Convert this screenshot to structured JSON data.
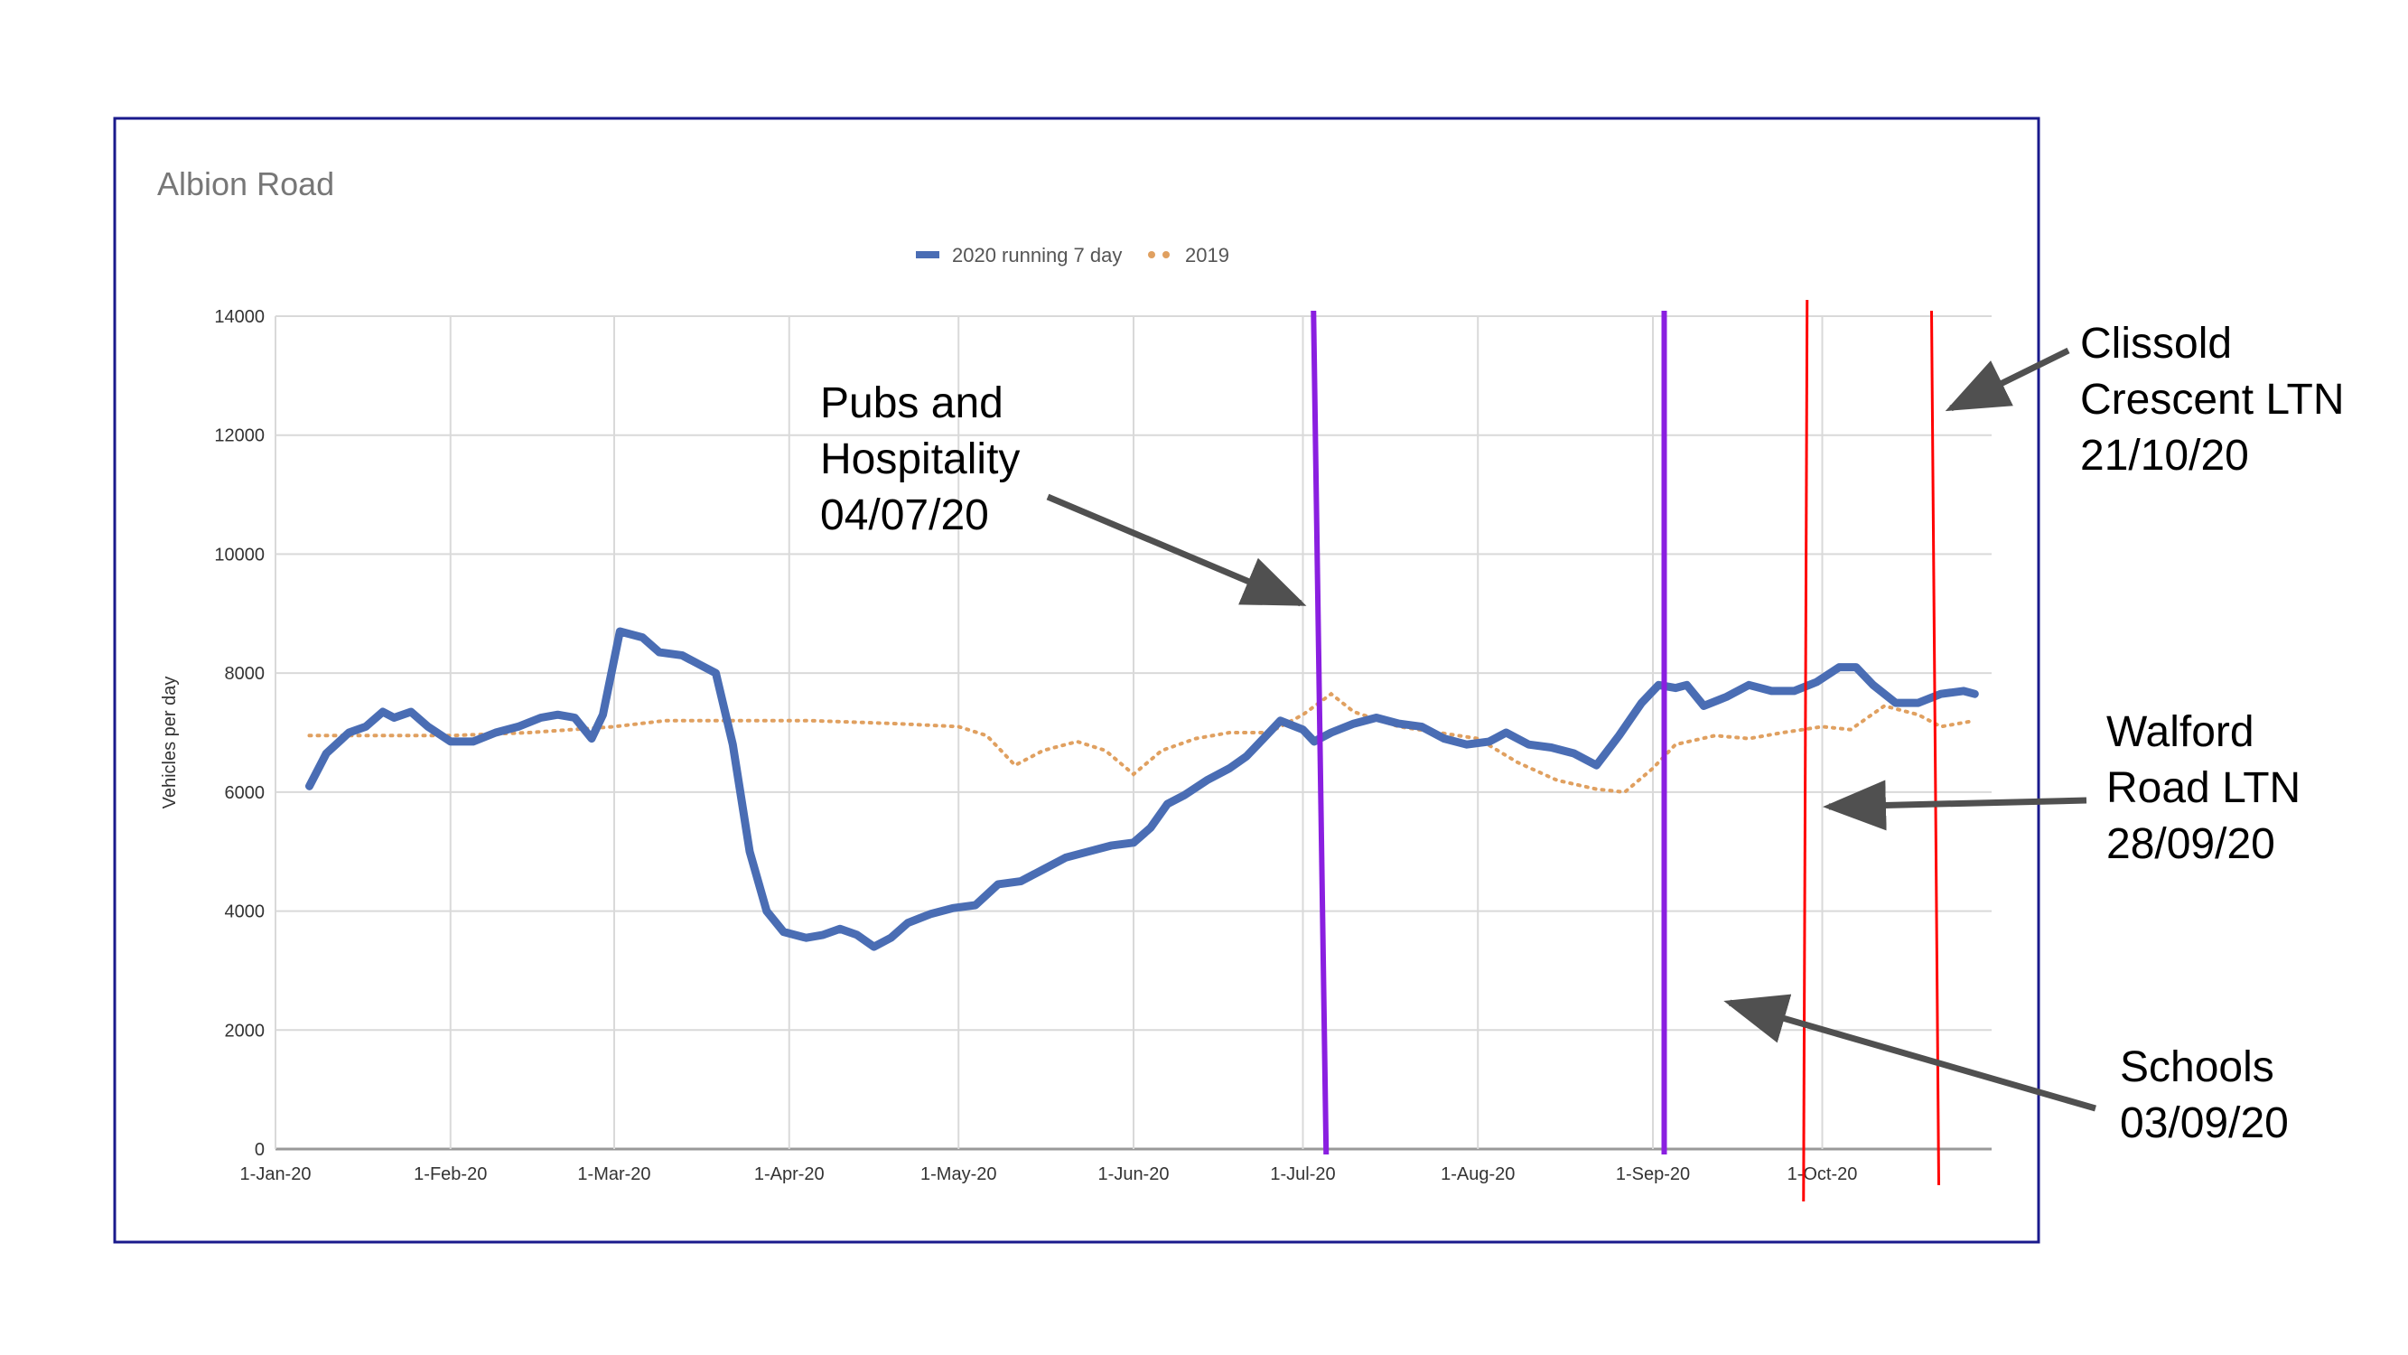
{
  "colors": {
    "series_2020": "#4a6db4",
    "series_2019": "#e0a060",
    "purple_marker": "#8a1fe0",
    "red_marker": "#ff0000",
    "frame": "#1a1a8c",
    "grid": "#d9d9d9",
    "arrow": "#505050"
  },
  "chart_data": {
    "type": "line",
    "title": "Albion Road",
    "ylabel": "Vehicles per day",
    "xlabel": "",
    "ylim": [
      0,
      14000
    ],
    "yticks": [
      "0",
      "2000",
      "4000",
      "6000",
      "8000",
      "10000",
      "12000",
      "14000"
    ],
    "xticks": [
      "1-Jan-20",
      "1-Feb-20",
      "1-Mar-20",
      "1-Apr-20",
      "1-May-20",
      "1-Jun-20",
      "1-Jul-20",
      "1-Aug-20",
      "1-Sep-20",
      "1-Oct-20"
    ],
    "x_range": [
      "2020-01-01",
      "2020-10-31"
    ],
    "grid": true,
    "legend_position": "top-center",
    "series": [
      {
        "name": "2020 running 7 day",
        "style": "solid",
        "points": [
          [
            "2020-01-07",
            6100
          ],
          [
            "2020-01-10",
            6650
          ],
          [
            "2020-01-14",
            7000
          ],
          [
            "2020-01-17",
            7100
          ],
          [
            "2020-01-20",
            7350
          ],
          [
            "2020-01-22",
            7250
          ],
          [
            "2020-01-25",
            7350
          ],
          [
            "2020-01-28",
            7100
          ],
          [
            "2020-02-01",
            6850
          ],
          [
            "2020-02-05",
            6850
          ],
          [
            "2020-02-09",
            7000
          ],
          [
            "2020-02-13",
            7100
          ],
          [
            "2020-02-17",
            7250
          ],
          [
            "2020-02-20",
            7300
          ],
          [
            "2020-02-23",
            7250
          ],
          [
            "2020-02-26",
            6900
          ],
          [
            "2020-02-28",
            7300
          ],
          [
            "2020-03-02",
            8700
          ],
          [
            "2020-03-06",
            8600
          ],
          [
            "2020-03-09",
            8350
          ],
          [
            "2020-03-13",
            8300
          ],
          [
            "2020-03-16",
            8150
          ],
          [
            "2020-03-19",
            8000
          ],
          [
            "2020-03-22",
            6800
          ],
          [
            "2020-03-25",
            5000
          ],
          [
            "2020-03-28",
            4000
          ],
          [
            "2020-03-31",
            3650
          ],
          [
            "2020-04-04",
            3550
          ],
          [
            "2020-04-07",
            3600
          ],
          [
            "2020-04-10",
            3700
          ],
          [
            "2020-04-13",
            3600
          ],
          [
            "2020-04-16",
            3400
          ],
          [
            "2020-04-19",
            3550
          ],
          [
            "2020-04-22",
            3800
          ],
          [
            "2020-04-26",
            3950
          ],
          [
            "2020-04-30",
            4050
          ],
          [
            "2020-05-04",
            4100
          ],
          [
            "2020-05-08",
            4450
          ],
          [
            "2020-05-12",
            4500
          ],
          [
            "2020-05-16",
            4700
          ],
          [
            "2020-05-20",
            4900
          ],
          [
            "2020-05-24",
            5000
          ],
          [
            "2020-05-28",
            5100
          ],
          [
            "2020-06-01",
            5150
          ],
          [
            "2020-06-04",
            5400
          ],
          [
            "2020-06-07",
            5800
          ],
          [
            "2020-06-10",
            5950
          ],
          [
            "2020-06-14",
            6200
          ],
          [
            "2020-06-18",
            6400
          ],
          [
            "2020-06-21",
            6600
          ],
          [
            "2020-06-24",
            6900
          ],
          [
            "2020-06-27",
            7200
          ],
          [
            "2020-07-01",
            7050
          ],
          [
            "2020-07-03",
            6850
          ],
          [
            "2020-07-06",
            7000
          ],
          [
            "2020-07-10",
            7150
          ],
          [
            "2020-07-14",
            7250
          ],
          [
            "2020-07-18",
            7150
          ],
          [
            "2020-07-22",
            7100
          ],
          [
            "2020-07-26",
            6900
          ],
          [
            "2020-07-30",
            6800
          ],
          [
            "2020-08-03",
            6850
          ],
          [
            "2020-08-06",
            7000
          ],
          [
            "2020-08-10",
            6800
          ],
          [
            "2020-08-14",
            6750
          ],
          [
            "2020-08-18",
            6650
          ],
          [
            "2020-08-22",
            6450
          ],
          [
            "2020-08-26",
            6950
          ],
          [
            "2020-08-30",
            7500
          ],
          [
            "2020-09-02",
            7800
          ],
          [
            "2020-09-05",
            7750
          ],
          [
            "2020-09-07",
            7800
          ],
          [
            "2020-09-10",
            7450
          ],
          [
            "2020-09-14",
            7600
          ],
          [
            "2020-09-18",
            7800
          ],
          [
            "2020-09-22",
            7700
          ],
          [
            "2020-09-26",
            7700
          ],
          [
            "2020-09-30",
            7850
          ],
          [
            "2020-10-04",
            8100
          ],
          [
            "2020-10-07",
            8100
          ],
          [
            "2020-10-10",
            7800
          ],
          [
            "2020-10-14",
            7500
          ],
          [
            "2020-10-18",
            7500
          ],
          [
            "2020-10-22",
            7650
          ],
          [
            "2020-10-26",
            7700
          ],
          [
            "2020-10-28",
            7650
          ]
        ]
      },
      {
        "name": "2019",
        "style": "dotted",
        "points": [
          [
            "2020-01-07",
            6950
          ],
          [
            "2020-01-20",
            6950
          ],
          [
            "2020-02-01",
            6950
          ],
          [
            "2020-02-15",
            7000
          ],
          [
            "2020-03-01",
            7100
          ],
          [
            "2020-03-10",
            7200
          ],
          [
            "2020-03-20",
            7200
          ],
          [
            "2020-04-05",
            7200
          ],
          [
            "2020-04-20",
            7150
          ],
          [
            "2020-05-01",
            7100
          ],
          [
            "2020-05-06",
            6950
          ],
          [
            "2020-05-11",
            6450
          ],
          [
            "2020-05-16",
            6700
          ],
          [
            "2020-05-22",
            6850
          ],
          [
            "2020-05-27",
            6700
          ],
          [
            "2020-06-01",
            6300
          ],
          [
            "2020-06-06",
            6700
          ],
          [
            "2020-06-12",
            6900
          ],
          [
            "2020-06-18",
            7000
          ],
          [
            "2020-06-25",
            7000
          ],
          [
            "2020-07-01",
            7300
          ],
          [
            "2020-07-06",
            7650
          ],
          [
            "2020-07-10",
            7350
          ],
          [
            "2020-07-18",
            7100
          ],
          [
            "2020-07-25",
            7000
          ],
          [
            "2020-08-01",
            6900
          ],
          [
            "2020-08-08",
            6500
          ],
          [
            "2020-08-15",
            6200
          ],
          [
            "2020-08-22",
            6050
          ],
          [
            "2020-08-27",
            6000
          ],
          [
            "2020-09-01",
            6400
          ],
          [
            "2020-09-05",
            6800
          ],
          [
            "2020-09-12",
            6950
          ],
          [
            "2020-09-18",
            6900
          ],
          [
            "2020-09-24",
            7000
          ],
          [
            "2020-10-01",
            7100
          ],
          [
            "2020-10-06",
            7050
          ],
          [
            "2020-10-12",
            7450
          ],
          [
            "2020-10-18",
            7300
          ],
          [
            "2020-10-22",
            7100
          ],
          [
            "2020-10-28",
            7200
          ]
        ]
      }
    ]
  },
  "annotations": [
    {
      "id": "pubs",
      "lines": [
        "Pubs and",
        "Hospitality",
        "04/07/20"
      ],
      "date": "2020-07-04",
      "marker_color": "purple_marker"
    },
    {
      "id": "schools",
      "lines": [
        "Schools",
        "03/09/20"
      ],
      "date": "2020-09-03",
      "marker_color": "purple_marker"
    },
    {
      "id": "walford",
      "lines": [
        "Walford",
        "Road LTN",
        "28/09/20"
      ],
      "date": "2020-09-28",
      "marker_color": "red_marker"
    },
    {
      "id": "clissold",
      "lines": [
        "Clissold",
        "Crescent LTN",
        "21/10/20"
      ],
      "date": "2020-10-21",
      "marker_color": "red_marker"
    }
  ]
}
